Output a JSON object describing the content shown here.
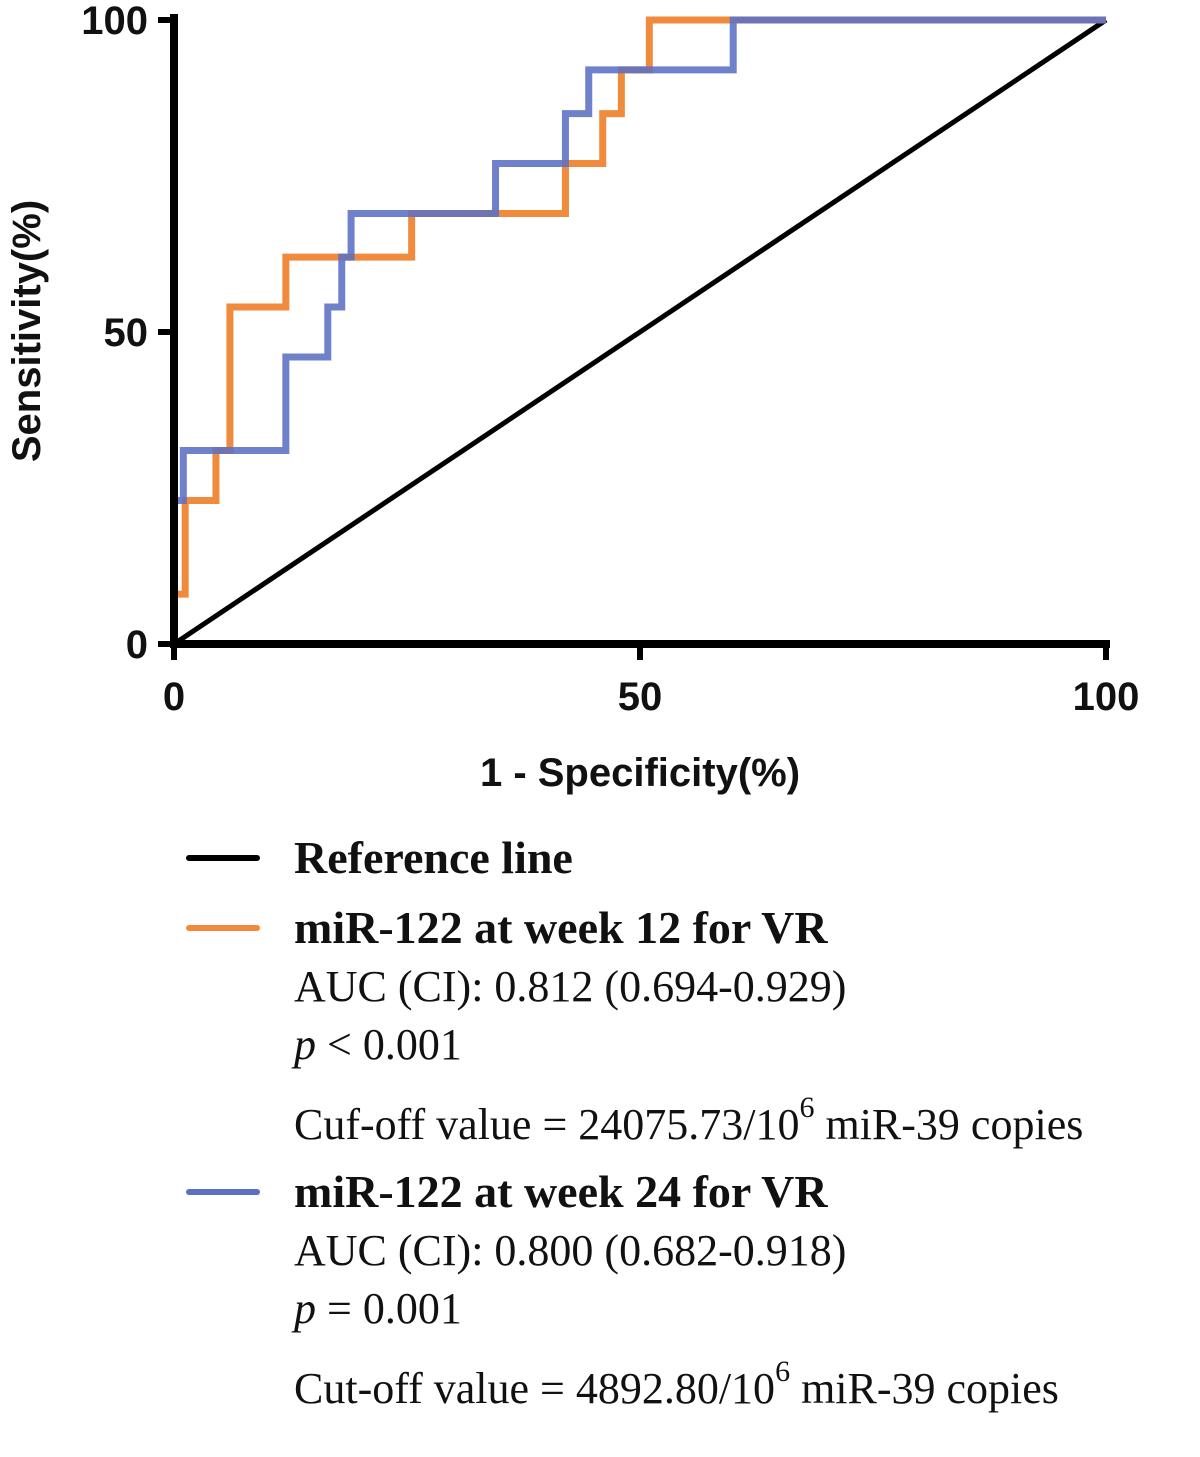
{
  "chart_data": {
    "type": "line",
    "xlabel": "1 - Specificity(%)",
    "ylabel": "Sensitivity(%)",
    "xlim": [
      0,
      100
    ],
    "ylim": [
      0,
      100
    ],
    "xticks": [
      "0",
      "50",
      "100"
    ],
    "yticks": [
      "0",
      "50",
      "100"
    ],
    "grid": false,
    "legend_position": "bottom",
    "series": [
      {
        "name": "Reference line",
        "color": "#000000",
        "x": [
          0,
          100
        ],
        "y": [
          0,
          100
        ]
      },
      {
        "name": "miR-122 at week 12 for VR",
        "color": "#f08a3c",
        "auc": "AUC (CI): 0.812 (0.694-0.929)",
        "p_label": "p",
        "p_rest": " < 0.001",
        "cutoff_prefix": "Cuf-off value = 24075.73/10",
        "cutoff_exp": "6",
        "cutoff_suffix": " miR-39 copies",
        "x": [
          0,
          0,
          1.2,
          1.2,
          4.5,
          4.5,
          6,
          6,
          12,
          12,
          25.5,
          25.5,
          42,
          42,
          46,
          46,
          48,
          48,
          51,
          51,
          60,
          100
        ],
        "y": [
          0,
          8,
          8,
          23,
          23,
          31,
          31,
          54,
          54,
          62,
          62,
          69,
          69,
          77,
          77,
          85,
          85,
          92,
          92,
          100,
          100,
          100
        ]
      },
      {
        "name": "miR-122 at week 24 for VR",
        "color": "#5b6fc4",
        "auc": "AUC (CI): 0.800 (0.682-0.918)",
        "p_label": "p",
        "p_rest": " = 0.001",
        "cutoff_prefix": "Cut-off value = 4892.80/10",
        "cutoff_exp": "6",
        "cutoff_suffix": " miR-39 copies",
        "x": [
          0,
          0,
          1,
          1,
          12,
          12,
          16.5,
          16.5,
          18,
          18,
          19,
          19,
          34.5,
          34.5,
          42,
          42,
          44.5,
          44.5,
          60,
          60,
          100
        ],
        "y": [
          0,
          23,
          23,
          31,
          31,
          46,
          46,
          54,
          54,
          62,
          62,
          69,
          69,
          77,
          77,
          85,
          85,
          92,
          92,
          100,
          100
        ]
      }
    ]
  }
}
